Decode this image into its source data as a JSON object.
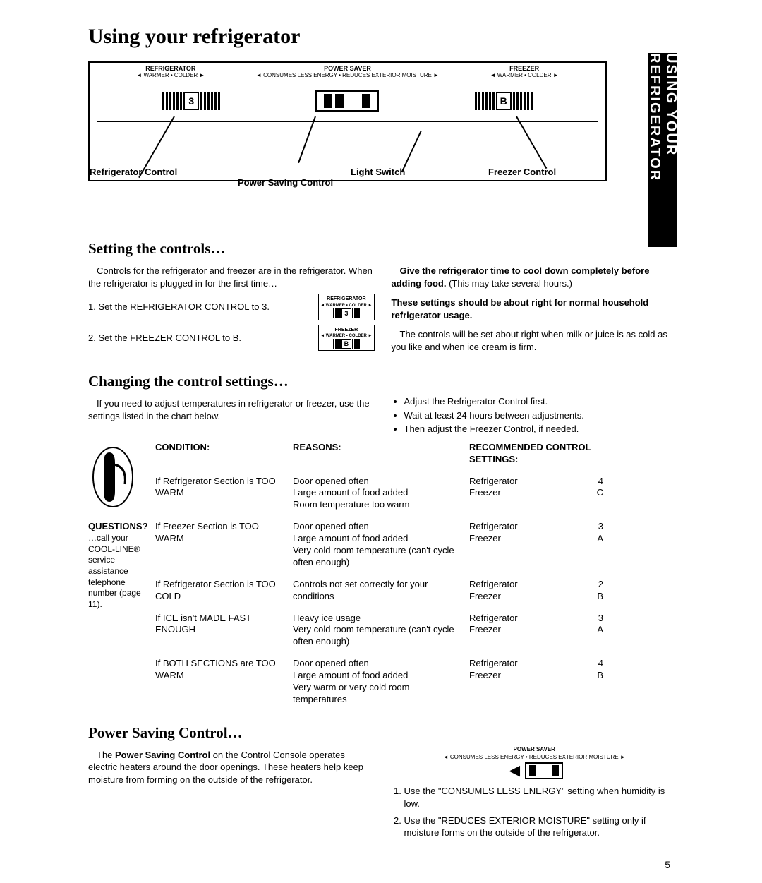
{
  "title": "Using your refrigerator",
  "side_tab": "USING YOUR REFRIGERATOR",
  "panel": {
    "refrig_hdr": "REFRIGERATOR",
    "refrig_sub": "◄ WARMER • COLDER ►",
    "power_hdr": "POWER  SAVER",
    "power_sub": "◄ CONSUMES LESS ENERGY • REDUCES EXTERIOR MOISTURE ►",
    "freezer_hdr": "FREEZER",
    "freezer_sub": "◄ WARMER • COLDER ►",
    "refrig_num": "3",
    "freezer_num": "B",
    "lbl_refrig": "Refrigerator Control",
    "lbl_power": "Power Saving Control",
    "lbl_light": "Light Switch",
    "lbl_freezer": "Freezer Control"
  },
  "s1": {
    "heading": "Setting the controls…",
    "intro": "Controls for the refrigerator and freezer are in the refrigerator. When the refrigerator is plugged in for the first time…",
    "step1": "Set the REFRIGERATOR CONTROL to 3.",
    "step2": "Set the FREEZER CONTROL to B.",
    "mini1_lbl": "REFRIGERATOR",
    "mini1_sub": "◄ WARMER • COLDER ►",
    "mini1_num": "3",
    "mini2_lbl": "FREEZER",
    "mini2_sub": "◄ WARMER • COLDER ►",
    "mini2_num": "B",
    "right1_bold": "Give the refrigerator time to cool down completely before adding food.",
    "right1_rest": " (This may take several hours.)",
    "right2": "These settings should be about right for normal household refrigerator usage.",
    "right3": "The controls will be set about right when milk or juice is as cold as you like and when ice cream is firm."
  },
  "s2": {
    "heading": "Changing the control settings…",
    "left": "If you need to adjust temperatures in refrigerator or freezer, use the settings listed in the chart below.",
    "b1": "Adjust the Refrigerator Control first.",
    "b2": "Wait at least 24 hours between adjustments.",
    "b3": "Then adjust the Freezer Control, if needed."
  },
  "table": {
    "hdr_cond": "CONDITION:",
    "hdr_reason": "REASONS:",
    "hdr_rec": "RECOMMENDED CONTROL SETTINGS:",
    "q_hdr": "QUESTIONS?",
    "q_body": "…call your COOL-LINE® service assistance telephone number (page 11).",
    "rows": [
      {
        "cond": "If Refrigerator Section is TOO WARM",
        "reason": "Door opened often\nLarge amount of food added\nRoom temperature too warm",
        "r1l": "Refrigerator",
        "r1v": "4",
        "r2l": "Freezer",
        "r2v": "C"
      },
      {
        "cond": "If Freezer Section is TOO WARM",
        "reason": "Door opened often\nLarge amount of food added\nVery cold room temperature (can't cycle often enough)",
        "r1l": "Refrigerator",
        "r1v": "3",
        "r2l": "Freezer",
        "r2v": "A"
      },
      {
        "cond": "If Refrigerator Section is TOO COLD",
        "reason": "Controls not set correctly for your conditions",
        "r1l": "Refrigerator",
        "r1v": "2",
        "r2l": "Freezer",
        "r2v": "B"
      },
      {
        "cond": "If ICE isn't MADE FAST ENOUGH",
        "reason": "Heavy ice usage\nVery cold room temperature (can't cycle often enough)",
        "r1l": "Refrigerator",
        "r1v": "3",
        "r2l": "Freezer",
        "r2v": "A"
      },
      {
        "cond": "If BOTH SECTIONS are TOO WARM",
        "reason": "Door opened often\nLarge amount of food added\nVery warm or very cold room temperatures",
        "r1l": "Refrigerator",
        "r1v": "4",
        "r2l": "Freezer",
        "r2v": "B"
      }
    ]
  },
  "s3": {
    "heading": "Power Saving Control…",
    "left_p1a": "The ",
    "left_p1b": "Power Saving Control",
    "left_p1c": " on the Control Console operates electric heaters around the door openings. These heaters help keep moisture from forming on the outside of the refrigerator.",
    "diag_top": "POWER  SAVER",
    "diag_sub": "◄ CONSUMES LESS ENERGY • REDUCES EXTERIOR MOISTURE ►",
    "r1": "Use the \"CONSUMES LESS ENERGY\" setting when humidity is low.",
    "r2": "Use the \"REDUCES EXTERIOR MOISTURE\" setting only if moisture forms on the outside of the refrigerator."
  },
  "page_number": "5"
}
